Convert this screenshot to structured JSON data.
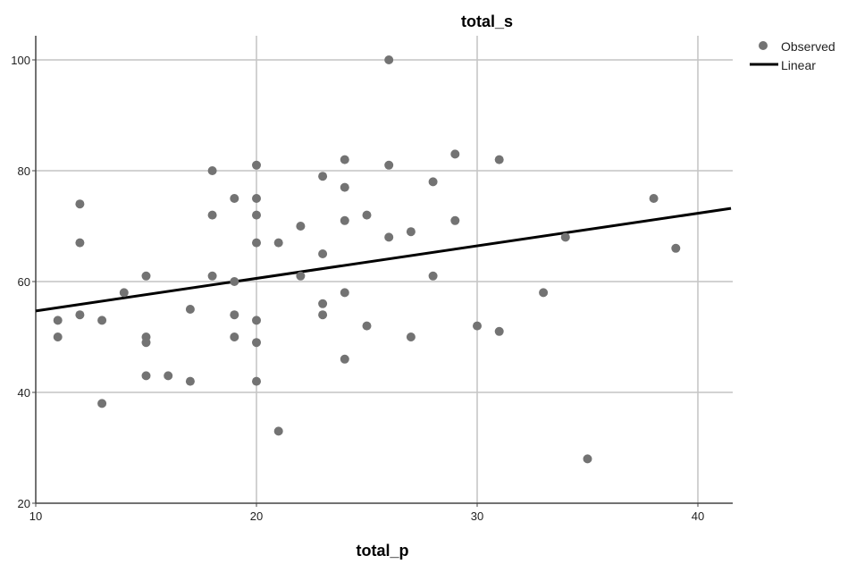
{
  "chart_data": {
    "type": "scatter",
    "title": "total_s",
    "xlabel": "total_p",
    "ylabel": "",
    "xlim": [
      10,
      41.5
    ],
    "ylim": [
      20,
      104
    ],
    "xticks": [
      10,
      20,
      30,
      40
    ],
    "yticks": [
      20,
      40,
      60,
      80,
      100
    ],
    "grid": true,
    "legend_position": "top-right",
    "colors": {
      "points": "#737373",
      "line": "#000000",
      "grid": "#c4c4c4",
      "axis": "#444444"
    },
    "series": [
      {
        "name": "Observed",
        "kind": "points",
        "points": [
          [
            11,
            53
          ],
          [
            11,
            50
          ],
          [
            12,
            74
          ],
          [
            12,
            67
          ],
          [
            12,
            54
          ],
          [
            13,
            53
          ],
          [
            13,
            38
          ],
          [
            14,
            58
          ],
          [
            15,
            61
          ],
          [
            15,
            50
          ],
          [
            15,
            49
          ],
          [
            15,
            43
          ],
          [
            16,
            43
          ],
          [
            17,
            55
          ],
          [
            17,
            42
          ],
          [
            18,
            80
          ],
          [
            18,
            72
          ],
          [
            18,
            61
          ],
          [
            19,
            75
          ],
          [
            19,
            60
          ],
          [
            19,
            54
          ],
          [
            19,
            50
          ],
          [
            20,
            81
          ],
          [
            20,
            75
          ],
          [
            20,
            72
          ],
          [
            20,
            67
          ],
          [
            20,
            53
          ],
          [
            20,
            49
          ],
          [
            20,
            42
          ],
          [
            21,
            67
          ],
          [
            21,
            33
          ],
          [
            22,
            70
          ],
          [
            22,
            61
          ],
          [
            23,
            79
          ],
          [
            23,
            65
          ],
          [
            23,
            56
          ],
          [
            23,
            54
          ],
          [
            24,
            82
          ],
          [
            24,
            77
          ],
          [
            24,
            71
          ],
          [
            24,
            58
          ],
          [
            24,
            46
          ],
          [
            25,
            72
          ],
          [
            25,
            52
          ],
          [
            26,
            100
          ],
          [
            26,
            81
          ],
          [
            26,
            68
          ],
          [
            27,
            69
          ],
          [
            27,
            50
          ],
          [
            28,
            78
          ],
          [
            28,
            61
          ],
          [
            29,
            83
          ],
          [
            29,
            71
          ],
          [
            30,
            52
          ],
          [
            31,
            82
          ],
          [
            31,
            51
          ],
          [
            33,
            58
          ],
          [
            34,
            68
          ],
          [
            35,
            28
          ],
          [
            38,
            75
          ],
          [
            39,
            66
          ]
        ]
      },
      {
        "name": "Linear",
        "kind": "line",
        "points": [
          [
            10,
            54.7
          ],
          [
            41.5,
            73.2
          ]
        ]
      }
    ]
  }
}
